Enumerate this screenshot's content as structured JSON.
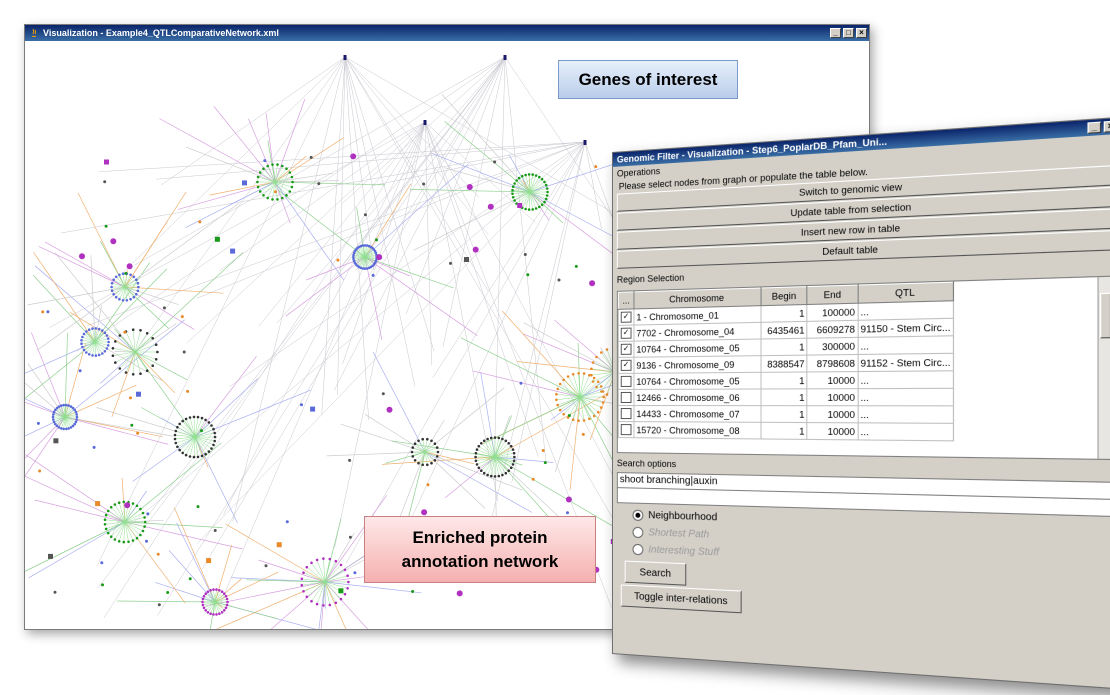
{
  "vis_window": {
    "title": "Visualization - Example4_QTLComparativeNetwork.xml",
    "controls": [
      "_",
      "□",
      "×"
    ]
  },
  "callouts": {
    "genes": "Genes of interest",
    "enriched_line1": "Enriched protein",
    "enriched_line2": "annotation network"
  },
  "genomic_filter": {
    "title": "Genomic Filter - Visualization - Step6_PoplarDB_Pfam_Uni...",
    "controls": [
      "_",
      "×"
    ],
    "operations_label": "Operations",
    "hint": "Please select nodes from graph or populate the table below.",
    "buttons": [
      "Switch to genomic view",
      "Update table from selection",
      "Insert new row in table",
      "Default table"
    ],
    "region_label": "Region Selection",
    "table": {
      "headers": [
        "...",
        "Chromosome",
        "Begin",
        "End",
        "QTL"
      ],
      "rows": [
        {
          "checked": true,
          "chromosome": "1 - Chromosome_01",
          "begin": "1",
          "end": "100000",
          "qtl": "..."
        },
        {
          "checked": true,
          "chromosome": "7702 - Chromosome_04",
          "begin": "6435461",
          "end": "6609278",
          "qtl": "91150 - Stem Circ..."
        },
        {
          "checked": true,
          "chromosome": "10764 - Chromosome_05",
          "begin": "1",
          "end": "300000",
          "qtl": "..."
        },
        {
          "checked": true,
          "chromosome": "9136 - Chromosome_09",
          "begin": "8388547",
          "end": "8798608",
          "qtl": "91152 - Stem Circ..."
        },
        {
          "checked": false,
          "chromosome": "10764 - Chromosome_05",
          "begin": "1",
          "end": "10000",
          "qtl": "..."
        },
        {
          "checked": false,
          "chromosome": "12466 - Chromosome_06",
          "begin": "1",
          "end": "10000",
          "qtl": "..."
        },
        {
          "checked": false,
          "chromosome": "14433 - Chromosome_07",
          "begin": "1",
          "end": "10000",
          "qtl": "..."
        },
        {
          "checked": false,
          "chromosome": "15720 - Chromosome_08",
          "begin": "1",
          "end": "10000",
          "qtl": "..."
        }
      ]
    },
    "search_label": "Search options",
    "search_value": "shoot branching|auxin",
    "radios": [
      {
        "label": "Neighbourhood",
        "selected": true
      },
      {
        "label": "Shortest Path",
        "selected": false
      },
      {
        "label": "Interesting Stuff",
        "selected": false
      }
    ],
    "search_button": "Search",
    "toggle_button": "Toggle inter-relations"
  },
  "colors": {
    "title_bar": "#0a246a",
    "dialog_bg": "#d4d0c8",
    "node_green": "#1a9a1a",
    "node_purple": "#b030c0",
    "node_blue": "#5a6ad8",
    "node_orange": "#e88a2a"
  }
}
